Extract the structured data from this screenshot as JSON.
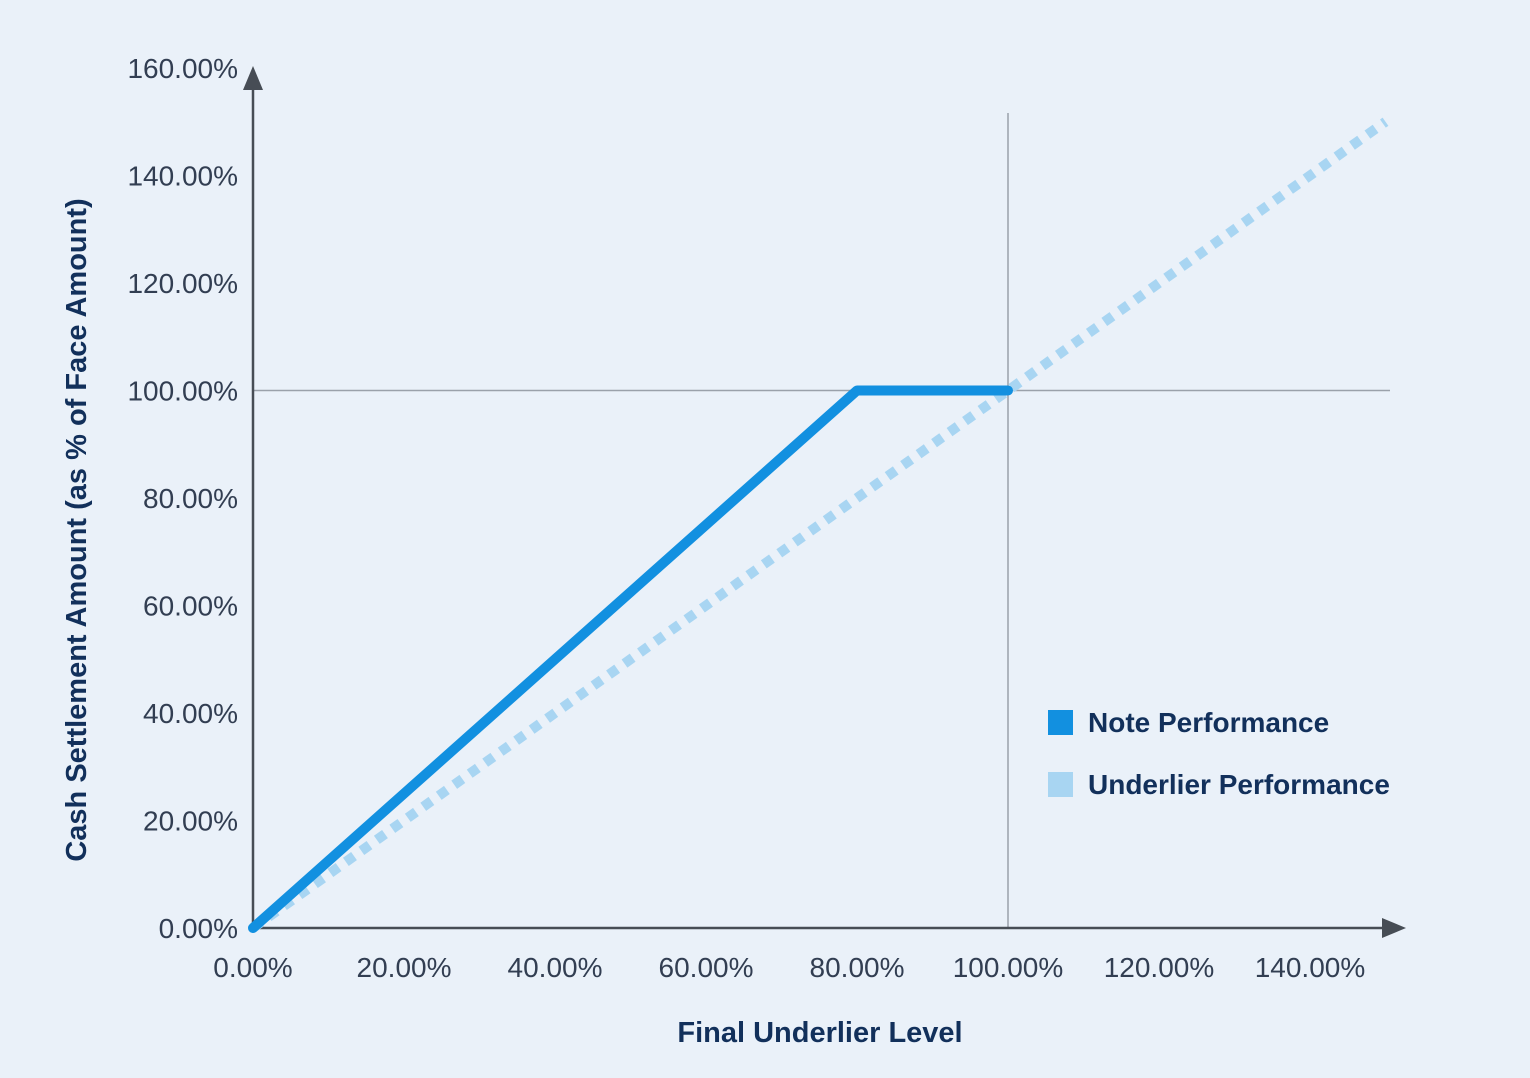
{
  "chart_data": {
    "type": "line",
    "title": "",
    "xlabel": "Final Underlier Level",
    "ylabel": "Cash Settlement Amount (as % of Face Amount)",
    "xlim": [
      0,
      150
    ],
    "ylim": [
      0,
      160
    ],
    "grid": false,
    "legend_position": "middle-right",
    "x_ticks": [
      {
        "value": 0,
        "label": "0.00%"
      },
      {
        "value": 20,
        "label": "20.00%"
      },
      {
        "value": 40,
        "label": "40.00%"
      },
      {
        "value": 60,
        "label": "60.00%"
      },
      {
        "value": 80,
        "label": "80.00%"
      },
      {
        "value": 100,
        "label": "100.00%"
      },
      {
        "value": 120,
        "label": "120.00%"
      },
      {
        "value": 140,
        "label": "140.00%"
      }
    ],
    "y_ticks": [
      {
        "value": 0,
        "label": "0.00%"
      },
      {
        "value": 20,
        "label": "20.00%"
      },
      {
        "value": 40,
        "label": "40.00%"
      },
      {
        "value": 60,
        "label": "60.00%"
      },
      {
        "value": 80,
        "label": "80.00%"
      },
      {
        "value": 100,
        "label": "100.00%"
      },
      {
        "value": 120,
        "label": "120.00%"
      },
      {
        "value": 140,
        "label": "140.00%"
      },
      {
        "value": 160,
        "label": "160.00%"
      }
    ],
    "reference_lines": {
      "horizontal_y": 100,
      "vertical_x": 100
    },
    "series": [
      {
        "name": "Note Performance",
        "style": "solid",
        "color": "#1290E0",
        "width": 10,
        "points": [
          [
            0,
            0
          ],
          [
            80,
            100
          ],
          [
            100,
            100
          ]
        ]
      },
      {
        "name": "Underlier Performance",
        "style": "dotted",
        "color": "#A8D5F2",
        "width": 10,
        "points": [
          [
            0,
            0
          ],
          [
            150,
            150
          ]
        ]
      }
    ]
  },
  "colors": {
    "background": "#EAF1F9",
    "axis": "#474D55",
    "reference_line": "#9AA1AA",
    "tick_text": "#323E52",
    "title_text": "#12305B"
  }
}
